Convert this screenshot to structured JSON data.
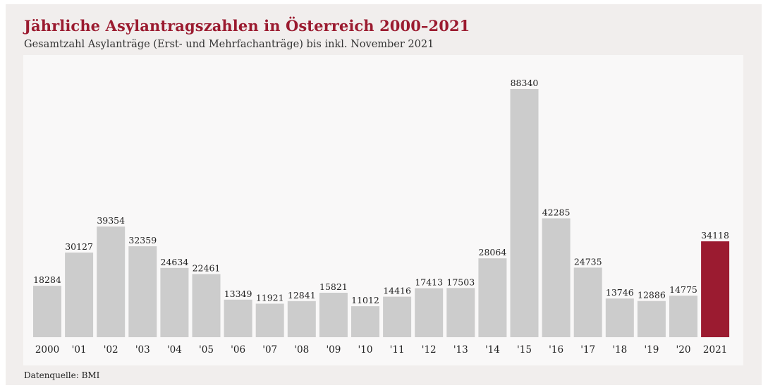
{
  "header": {
    "title": "Jährliche Asylantragszahlen in Österreich 2000–2021",
    "subtitle": "Gesamtzahl Asylanträge (Erst- und Mehrfachanträge) bis inkl. November 2021"
  },
  "footer": {
    "source": "Datenquelle: BMI"
  },
  "colors": {
    "bar_default": "#cccccc",
    "bar_highlight": "#9b1b30",
    "title": "#9b1b30"
  },
  "chart_data": {
    "type": "bar",
    "title": "Jährliche Asylantragszahlen in Österreich 2000–2021",
    "subtitle": "Gesamtzahl Asylanträge (Erst- und Mehrfachanträge) bis inkl. November 2021",
    "xlabel": "",
    "ylabel": "",
    "ylim": [
      0,
      88340
    ],
    "grid": false,
    "categories": [
      "2000",
      "'01",
      "'02",
      "'03",
      "'04",
      "'05",
      "'06",
      "'07",
      "'08",
      "'09",
      "'10",
      "'11",
      "'12",
      "'13",
      "'14",
      "'15",
      "'16",
      "'17",
      "'18",
      "'19",
      "'20",
      "2021"
    ],
    "values": [
      18284,
      30127,
      39354,
      32359,
      24634,
      22461,
      13349,
      11921,
      12841,
      15821,
      11012,
      14416,
      17413,
      17503,
      28064,
      88340,
      42285,
      24735,
      13746,
      12886,
      14775,
      34118
    ],
    "value_labels": [
      "18284",
      "30127",
      "39354",
      "32359",
      "24634",
      "22461",
      "13349",
      "11921",
      "12841",
      "15821",
      "11012",
      "14416",
      "17413",
      "17503",
      "28064",
      "88340",
      "42285",
      "24735",
      "13746",
      "12886",
      "14775",
      "34118"
    ],
    "highlight_index": 21
  }
}
